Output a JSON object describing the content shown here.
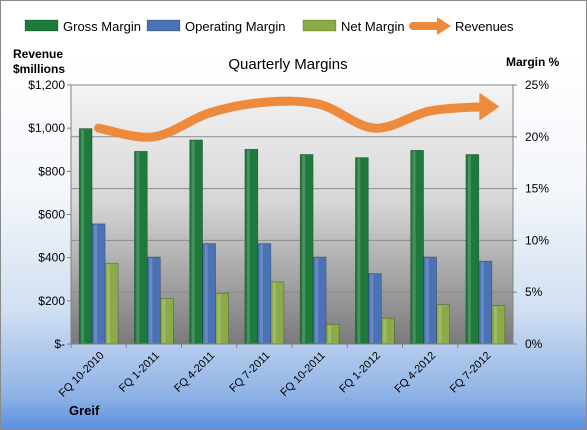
{
  "chart_data": {
    "type": "bar",
    "title": "Quarterly Margins",
    "categories": [
      "FQ 10-2010",
      "FQ 1-2011",
      "FQ 4-2011",
      "FQ 7-2011",
      "FQ 10-2011",
      "FQ 1-2012",
      "FQ 4-2012",
      "FQ 7-2012"
    ],
    "left_axis": {
      "label_line1": "Revenue",
      "label_line2": "$millions",
      "range": [
        0,
        1200
      ],
      "ticks": [
        0,
        200,
        400,
        600,
        800,
        1000,
        1200
      ],
      "tick_labels": [
        "$-",
        "$200",
        "$400",
        "$600",
        "$800",
        "$1,000",
        "$1,200"
      ]
    },
    "right_axis": {
      "label": "Margin %",
      "range": [
        0,
        25
      ],
      "ticks": [
        0,
        5,
        10,
        15,
        20,
        25
      ],
      "tick_labels": [
        "0%",
        "5%",
        "10%",
        "15%",
        "20%",
        "25%"
      ]
    },
    "series": [
      {
        "name": "Gross Margin",
        "type": "bar",
        "axis": "right",
        "color": "#1e7a3c",
        "values": [
          20.8,
          18.6,
          19.7,
          18.8,
          18.3,
          18.0,
          18.7,
          18.3
        ]
      },
      {
        "name": "Operating Margin",
        "type": "bar",
        "axis": "right",
        "color": "#4a72b4",
        "values": [
          11.6,
          8.4,
          9.7,
          9.7,
          8.4,
          6.8,
          8.4,
          8.0
        ]
      },
      {
        "name": "Net Margin",
        "type": "bar",
        "axis": "right",
        "color": "#8aab48",
        "values": [
          7.8,
          4.4,
          4.9,
          6.0,
          1.9,
          2.5,
          3.8,
          3.7
        ]
      },
      {
        "name": "Revenues",
        "type": "line",
        "axis": "left",
        "color": "#ee8a3c",
        "values": [
          1000,
          960,
          1070,
          1120,
          1110,
          1000,
          1080,
          1100
        ]
      }
    ],
    "legend_position": "top",
    "grid": true,
    "footer_label": "Greif"
  }
}
